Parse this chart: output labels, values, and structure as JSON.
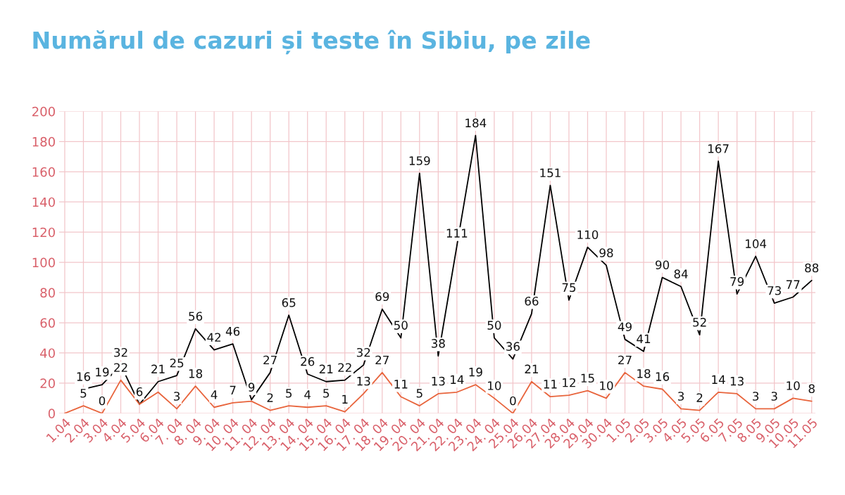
{
  "chart_data": {
    "type": "line",
    "title": "Numărul de cazuri și teste în Sibiu, pe zile",
    "categories": [
      "1.04",
      "2.04",
      "3.04",
      "4.04",
      "5.04",
      "6.04",
      "7. 04",
      "8. 04",
      "9. 04",
      "10. 04",
      "11. 04",
      "12. 04",
      "13. 04",
      "14. 04",
      "15. 04",
      "16. 04",
      "17. 04",
      "18. 04",
      "19. 04",
      "20. 04",
      "21. 04",
      "22. 04",
      "23. 04",
      "24. 04",
      "25.04",
      "26.04",
      "27.04",
      "28.04",
      "29.04",
      "30.04",
      "1.05",
      "2.05",
      "3.05",
      "4.05",
      "5.05",
      "6.05",
      "7.05",
      "8.05",
      "9.05",
      "10.05",
      "11.05"
    ],
    "series": [
      {
        "color": "#000000",
        "values": [
          null,
          16,
          19,
          32,
          6,
          21,
          25,
          56,
          42,
          46,
          9,
          27,
          65,
          26,
          21,
          22,
          32,
          69,
          50,
          159,
          38,
          111,
          184,
          50,
          36,
          66,
          151,
          75,
          110,
          98,
          49,
          41,
          90,
          84,
          52,
          167,
          79,
          104,
          73,
          77,
          88
        ],
        "value_labels": [
          null,
          "16",
          "19",
          "32",
          "6",
          "21",
          "25",
          "56",
          "42",
          "46",
          "9",
          "27",
          "65",
          "26",
          "21",
          "22",
          "32",
          "69",
          "50",
          "159",
          "38",
          "111",
          "184",
          "50",
          "36",
          "66",
          "151",
          "75",
          "110",
          "98",
          "49",
          "41",
          "90",
          "84",
          "52",
          "167",
          "79",
          "104",
          "73",
          "77",
          "88"
        ]
      },
      {
        "color": "#e8643c",
        "values": [
          0,
          5,
          0,
          22,
          6,
          14,
          3,
          18,
          4,
          7,
          8,
          2,
          5,
          4,
          5,
          1,
          13,
          27,
          11,
          5,
          13,
          14,
          19,
          10,
          0,
          21,
          11,
          12,
          15,
          10,
          27,
          18,
          16,
          3,
          2,
          14,
          13,
          3,
          3,
          10,
          8
        ],
        "value_labels": [
          null,
          "5",
          "0",
          "22",
          null,
          null,
          "3",
          "18",
          "4",
          "7",
          null,
          "2",
          "5",
          "4",
          "5",
          "1",
          "13",
          "27",
          "11",
          "5",
          "13",
          "14",
          "19",
          "10",
          "0",
          "21",
          "11",
          "12",
          "15",
          "10",
          "27",
          "18",
          "16",
          "3",
          "2",
          "14",
          "13",
          "3",
          "3",
          "10",
          "8"
        ]
      }
    ],
    "ylim": [
      0,
      200
    ],
    "yticks": [
      0,
      20,
      40,
      60,
      80,
      100,
      120,
      140,
      160,
      180,
      200
    ],
    "grid": true,
    "line_style": "solid",
    "marker": "none"
  }
}
